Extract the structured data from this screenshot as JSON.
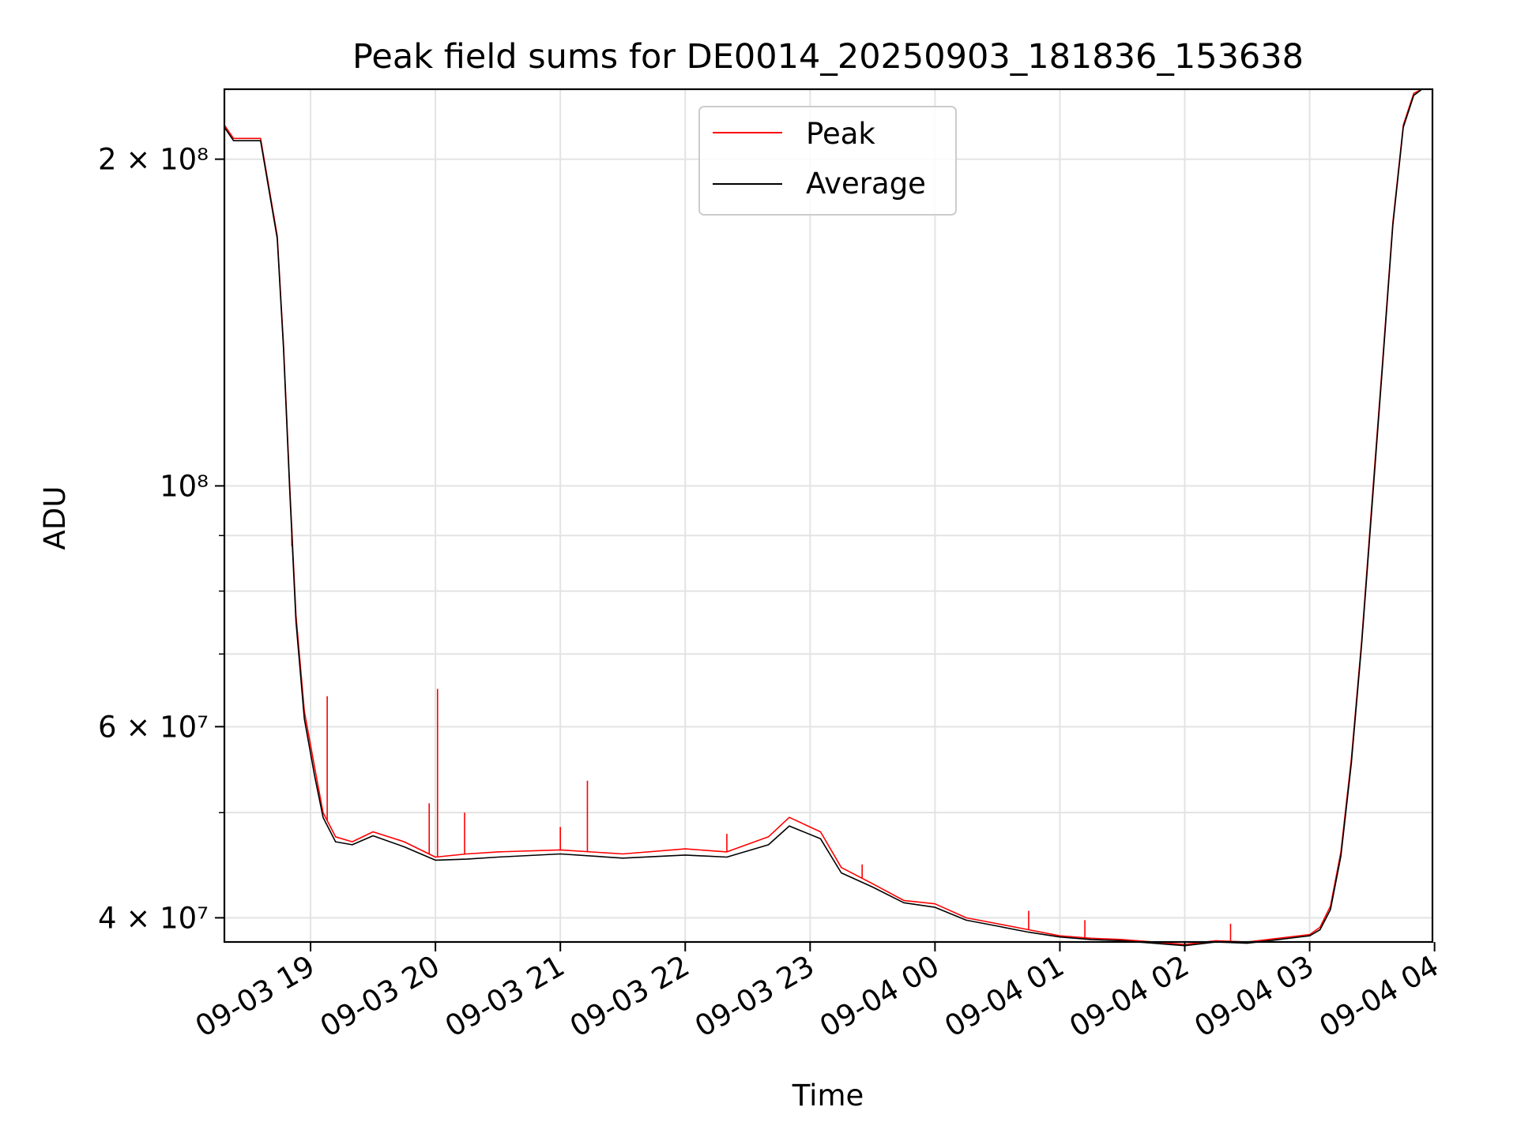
{
  "chart_data": {
    "type": "line",
    "title": "Peak field sums for DE0014_20250903_181836_153638",
    "xlabel": "Time",
    "ylabel": "ADU",
    "x_tick_labels": [
      "09-03 19",
      "09-03 20",
      "09-03 21",
      "09-03 22",
      "09-03 23",
      "09-04 00",
      "09-04 01",
      "09-04 02",
      "09-04 03",
      "09-04 04"
    ],
    "x_tick_times": [
      "2025-09-03T19:00",
      "2025-09-03T20:00",
      "2025-09-03T21:00",
      "2025-09-03T22:00",
      "2025-09-03T23:00",
      "2025-09-04T00:00",
      "2025-09-04T01:00",
      "2025-09-04T02:00",
      "2025-09-04T03:00",
      "2025-09-04T04:00"
    ],
    "xlim": [
      "2025-09-03T18:18:36",
      "2025-09-04T03:59:00"
    ],
    "y_scale": "log",
    "ylim": [
      38000000,
      232000000
    ],
    "y_tick_labels": [
      {
        "value": 200000000,
        "label": "2 × 10⁸"
      },
      {
        "value": 100000000,
        "label": "10⁸"
      },
      {
        "value": 60000000,
        "label": "6 × 10⁷"
      },
      {
        "value": 40000000,
        "label": "4 × 10⁷"
      }
    ],
    "y_minor_ticks": [
      50000000,
      70000000,
      80000000,
      90000000
    ],
    "grid": true,
    "legend_position": "top-center",
    "series": [
      {
        "name": "Peak",
        "color": "#ff0000",
        "x": [
          "2025-09-03T18:18:36",
          "2025-09-03T18:23",
          "2025-09-03T18:36",
          "2025-09-03T18:44",
          "2025-09-03T18:47",
          "2025-09-03T18:50",
          "2025-09-03T18:53",
          "2025-09-03T18:57",
          "2025-09-03T19:02",
          "2025-09-03T19:06",
          "2025-09-03T19:12",
          "2025-09-03T19:20",
          "2025-09-03T19:30",
          "2025-09-03T19:45",
          "2025-09-03T20:00",
          "2025-09-03T20:15",
          "2025-09-03T20:30",
          "2025-09-03T21:00",
          "2025-09-03T21:30",
          "2025-09-03T22:00",
          "2025-09-03T22:20",
          "2025-09-03T22:40",
          "2025-09-03T22:50",
          "2025-09-03T23:05",
          "2025-09-03T23:15",
          "2025-09-03T23:30",
          "2025-09-03T23:45",
          "2025-09-04T00:00",
          "2025-09-04T00:15",
          "2025-09-04T00:30",
          "2025-09-04T00:45",
          "2025-09-04T01:00",
          "2025-09-04T01:15",
          "2025-09-04T01:30",
          "2025-09-04T01:45",
          "2025-09-04T02:00",
          "2025-09-04T02:15",
          "2025-09-04T02:30",
          "2025-09-04T02:45",
          "2025-09-04T03:00",
          "2025-09-04T03:05",
          "2025-09-04T03:10",
          "2025-09-04T03:15",
          "2025-09-04T03:20",
          "2025-09-04T03:25",
          "2025-09-04T03:30",
          "2025-09-04T03:35",
          "2025-09-04T03:40",
          "2025-09-04T03:45",
          "2025-09-04T03:50",
          "2025-09-04T03:54"
        ],
        "y": [
          215000000,
          209000000,
          209000000,
          170000000,
          135000000,
          100000000,
          76000000,
          62000000,
          55000000,
          50000000,
          47500000,
          47000000,
          48000000,
          47000000,
          45500000,
          45800000,
          46000000,
          46200000,
          45800000,
          46300000,
          46000000,
          47500000,
          49500000,
          48000000,
          44500000,
          43000000,
          41500000,
          41200000,
          40000000,
          39500000,
          39000000,
          38500000,
          38300000,
          38200000,
          38000000,
          37800000,
          38100000,
          38000000,
          38300000,
          38600000,
          39200000,
          41000000,
          46000000,
          56000000,
          72000000,
          97000000,
          130000000,
          175000000,
          215000000,
          230000000,
          232000000
        ],
        "spikes": [
          {
            "x": "2025-09-03T18:51",
            "y": 88000000
          },
          {
            "x": "2025-09-03T19:08",
            "y": 64000000
          },
          {
            "x": "2025-09-03T19:57",
            "y": 51000000
          },
          {
            "x": "2025-09-03T20:01",
            "y": 65000000
          },
          {
            "x": "2025-09-03T20:14",
            "y": 50000000
          },
          {
            "x": "2025-09-03T21:00",
            "y": 48500000
          },
          {
            "x": "2025-09-03T21:13",
            "y": 53500000
          },
          {
            "x": "2025-09-03T22:20",
            "y": 47800000
          },
          {
            "x": "2025-09-03T23:25",
            "y": 44800000
          },
          {
            "x": "2025-09-04T00:45",
            "y": 40600000
          },
          {
            "x": "2025-09-04T01:12",
            "y": 39800000
          },
          {
            "x": "2025-09-04T02:22",
            "y": 39500000
          }
        ]
      },
      {
        "name": "Average",
        "color": "#000000",
        "x": [
          "2025-09-03T18:18:36",
          "2025-09-03T18:23",
          "2025-09-03T18:36",
          "2025-09-03T18:44",
          "2025-09-03T18:47",
          "2025-09-03T18:50",
          "2025-09-03T18:53",
          "2025-09-03T18:57",
          "2025-09-03T19:02",
          "2025-09-03T19:06",
          "2025-09-03T19:12",
          "2025-09-03T19:20",
          "2025-09-03T19:30",
          "2025-09-03T19:45",
          "2025-09-03T20:00",
          "2025-09-03T20:15",
          "2025-09-03T20:30",
          "2025-09-03T21:00",
          "2025-09-03T21:30",
          "2025-09-03T22:00",
          "2025-09-03T22:20",
          "2025-09-03T22:40",
          "2025-09-03T22:50",
          "2025-09-03T23:05",
          "2025-09-03T23:15",
          "2025-09-03T23:30",
          "2025-09-03T23:45",
          "2025-09-04T00:00",
          "2025-09-04T00:15",
          "2025-09-04T00:30",
          "2025-09-04T00:45",
          "2025-09-04T01:00",
          "2025-09-04T01:15",
          "2025-09-04T01:30",
          "2025-09-04T01:45",
          "2025-09-04T02:00",
          "2025-09-04T02:15",
          "2025-09-04T02:30",
          "2025-09-04T02:45",
          "2025-09-04T03:00",
          "2025-09-04T03:05",
          "2025-09-04T03:10",
          "2025-09-04T03:15",
          "2025-09-04T03:20",
          "2025-09-04T03:25",
          "2025-09-04T03:30",
          "2025-09-04T03:35",
          "2025-09-04T03:40",
          "2025-09-04T03:45",
          "2025-09-04T03:50",
          "2025-09-04T03:54"
        ],
        "y": [
          214000000,
          208000000,
          208000000,
          169000000,
          134000000,
          99000000,
          75000000,
          61000000,
          54000000,
          49500000,
          47000000,
          46700000,
          47600000,
          46500000,
          45200000,
          45300000,
          45500000,
          45800000,
          45400000,
          45700000,
          45500000,
          46700000,
          48600000,
          47300000,
          44000000,
          42700000,
          41300000,
          40900000,
          39800000,
          39300000,
          38800000,
          38400000,
          38200000,
          38100000,
          37900000,
          37700000,
          38000000,
          37900000,
          38200000,
          38500000,
          39000000,
          40700000,
          45600000,
          55500000,
          71500000,
          96000000,
          129000000,
          174000000,
          214000000,
          229000000,
          232000000
        ]
      }
    ]
  }
}
